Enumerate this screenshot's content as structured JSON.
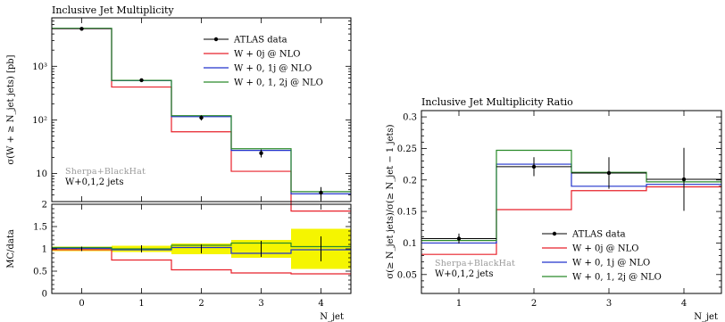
{
  "left": {
    "title": "Inclusive Jet Multiplicity",
    "ylabel": "σ(W + ≥ N_jet jets) [pb]",
    "ratio_ylabel": "MC/data",
    "xlabel": "N_jet",
    "generator": "Sherpa+BlackHat",
    "process": "W+0,1,2 jets",
    "x_ticks": [
      "0",
      "1",
      "2",
      "3",
      "4"
    ],
    "y_ticks": [
      "10",
      "10²",
      "10³"
    ],
    "ratio_ticks": [
      "0",
      "0.5",
      "1",
      "1.5",
      "2"
    ],
    "legend": [
      "ATLAS data",
      "W + 0j @ NLO",
      "W + 0, 1j @ NLO",
      "W + 0, 1, 2j @ NLO"
    ]
  },
  "right": {
    "title": "Inclusive Jet Multiplicity Ratio",
    "ylabel": "σ(≥ N_jet jets)/σ(≥ N_jet − 1 jets)",
    "xlabel": "N_jet",
    "generator": "Sherpa+BlackHat",
    "process": "W+0,1,2 jets",
    "x_ticks": [
      "1",
      "2",
      "3",
      "4"
    ],
    "y_ticks": [
      "0.05",
      "0.1",
      "0.15",
      "0.2",
      "0.25",
      "0.3"
    ],
    "legend": [
      "ATLAS data",
      "W + 0j @ NLO",
      "W + 0, 1j @ NLO",
      "W + 0, 1, 2j @ NLO"
    ]
  },
  "colors": {
    "data": "#000000",
    "nlo0": "#e8202a",
    "nlo01": "#2233cc",
    "nlo012": "#2a8a2a",
    "band": "#f5f500"
  },
  "chart_data": [
    {
      "type": "line",
      "title": "Inclusive Jet Multiplicity",
      "xlabel": "N_jet",
      "ylabel": "σ(W + ≥ N_jet jets) [pb]",
      "yscale": "log",
      "xlim": [
        -0.5,
        4.5
      ],
      "ylim": [
        3,
        8000
      ],
      "bins": [
        0,
        1,
        2,
        3,
        4
      ],
      "data": {
        "name": "ATLAS data",
        "values": [
          5000,
          550,
          110,
          24,
          4.4
        ],
        "errors": [
          300,
          40,
          12,
          4,
          1.2
        ]
      },
      "series": [
        {
          "name": "W + 0j @ NLO",
          "values": [
            5000,
            410,
            60,
            11,
            2.0
          ]
        },
        {
          "name": "W + 0, 1j @ NLO",
          "values": [
            5050,
            540,
            115,
            27,
            4.2
          ]
        },
        {
          "name": "W + 0, 1, 2j @ NLO",
          "values": [
            5100,
            545,
            120,
            29,
            4.6
          ]
        }
      ],
      "ratio": {
        "ylabel": "MC/data",
        "ylim": [
          0,
          2
        ],
        "uncertainty_band": [
          [
            0.95,
            1.05
          ],
          [
            0.93,
            1.07
          ],
          [
            0.88,
            1.12
          ],
          [
            0.8,
            1.2
          ],
          [
            0.55,
            1.45
          ]
        ],
        "data_errors": [
          0.05,
          0.08,
          0.1,
          0.18,
          0.28
        ],
        "series": [
          {
            "name": "W + 0j @ NLO",
            "values": [
              0.98,
              0.75,
              0.53,
              0.46,
              0.44
            ]
          },
          {
            "name": "W + 0, 1j @ NLO",
            "values": [
              1.01,
              0.98,
              1.03,
              0.9,
              0.98
            ]
          },
          {
            "name": "W + 0, 1, 2j @ NLO",
            "values": [
              1.03,
              1.0,
              1.08,
              1.13,
              1.05
            ]
          }
        ]
      }
    },
    {
      "type": "line",
      "title": "Inclusive Jet Multiplicity Ratio",
      "xlabel": "N_jet",
      "ylabel": "σ(≥ N_jet jets)/σ(≥ N_jet − 1 jets)",
      "xlim": [
        0.5,
        4.5
      ],
      "ylim": [
        0.02,
        0.31
      ],
      "bins": [
        1,
        2,
        3,
        4
      ],
      "data": {
        "name": "ATLAS data",
        "values": [
          0.107,
          0.221,
          0.211,
          0.201
        ],
        "errors": [
          0.008,
          0.015,
          0.025,
          0.05
        ]
      },
      "series": [
        {
          "name": "W + 0j @ NLO",
          "values": [
            0.082,
            0.153,
            0.183,
            0.189
          ]
        },
        {
          "name": "W + 0, 1j @ NLO",
          "values": [
            0.1,
            0.225,
            0.19,
            0.193
          ]
        },
        {
          "name": "W + 0, 1, 2j @ NLO",
          "values": [
            0.104,
            0.247,
            0.212,
            0.197
          ]
        }
      ]
    }
  ]
}
